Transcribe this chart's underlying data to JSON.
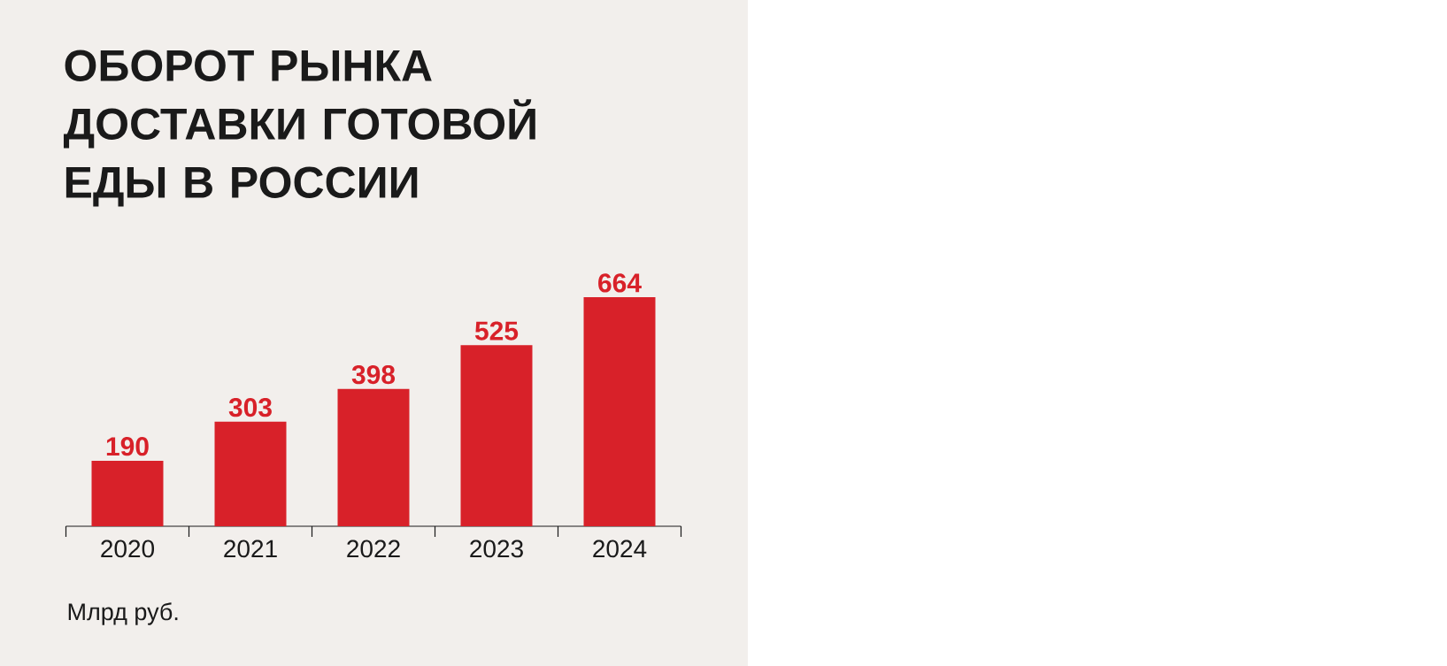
{
  "chart_data": {
    "type": "bar",
    "title": "ОБОРОТ РЫНКА ДОСТАВКИ ГОТОВОЙ ЕДЫ В РОССИИ",
    "annotations": [
      "Млрд руб."
    ],
    "categories": [
      "2020",
      "2021",
      "2022",
      "2023",
      "2024"
    ],
    "values": [
      190,
      303,
      398,
      525,
      664
    ],
    "color": "#d82129",
    "data_labels": true
  }
}
